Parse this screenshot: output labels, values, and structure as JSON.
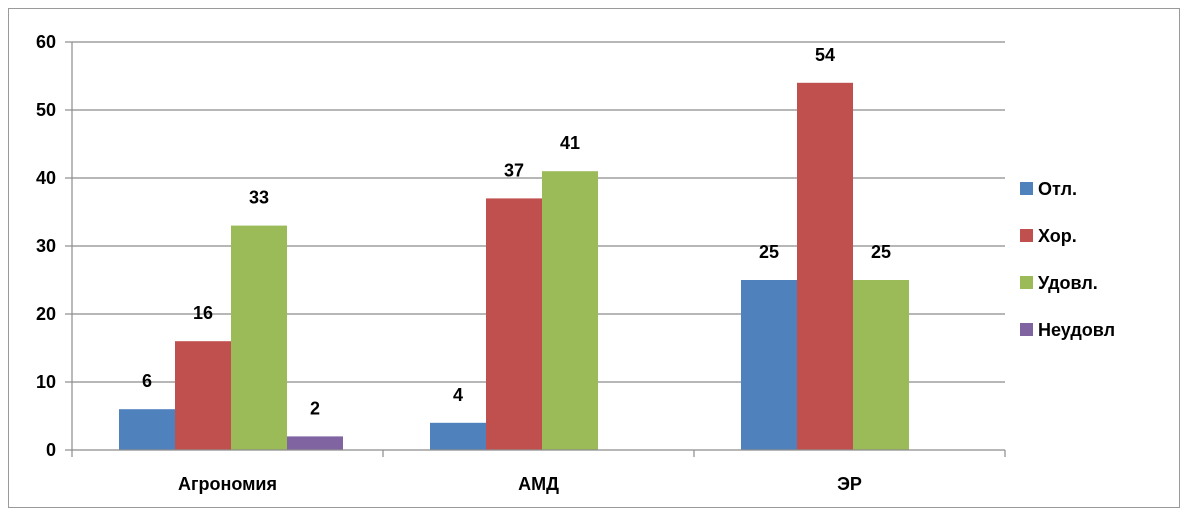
{
  "chart_data": {
    "type": "bar",
    "categories": [
      "Агрономия",
      "АМД",
      "ЭР"
    ],
    "series": [
      {
        "name": "Отл.",
        "values": [
          6,
          4,
          25
        ],
        "color": "#4f81bd"
      },
      {
        "name": "Хор.",
        "values": [
          16,
          37,
          54
        ],
        "color": "#c0504d"
      },
      {
        "name": "Удовл.",
        "values": [
          33,
          41,
          25
        ],
        "color": "#9bbb59"
      },
      {
        "name": "Неудовл",
        "values": [
          2,
          null,
          null
        ],
        "color": "#8064a2"
      }
    ],
    "title": "",
    "xlabel": "",
    "ylabel": "",
    "ylim": [
      0,
      60
    ],
    "yticks": [
      0,
      10,
      20,
      30,
      40,
      50,
      60
    ],
    "grid": true,
    "legend": "right",
    "data_labels": true
  }
}
